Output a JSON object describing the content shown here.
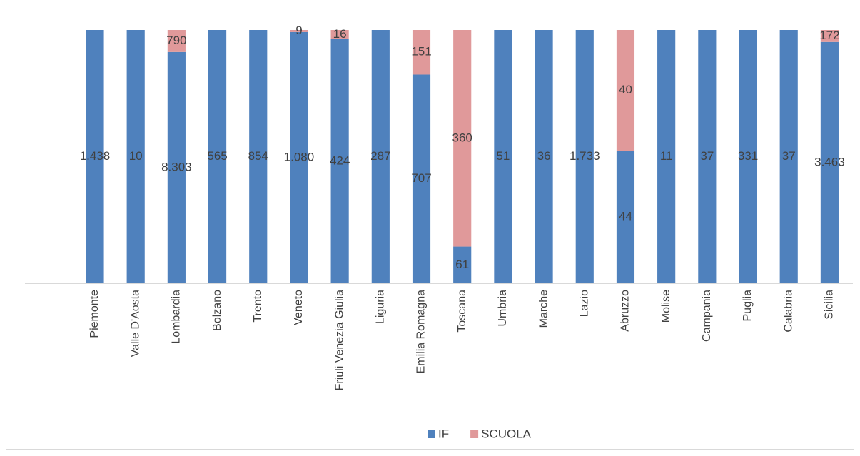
{
  "chart_data": {
    "type": "bar",
    "stacking": "percent",
    "categories": [
      "Piemonte",
      "Valle D'Aosta",
      "Lombardia",
      "Bolzano",
      "Trento",
      "Veneto",
      "Friuli Venezia Giulia",
      "Liguria",
      "Emilia Romagna",
      "Toscana",
      "Umbria",
      "Marche",
      "Lazio",
      "Abruzzo",
      "Molise",
      "Campania",
      "Puglia",
      "Calabria",
      "Sicilia"
    ],
    "series": [
      {
        "name": "IF",
        "color": "#4f81bd",
        "values": [
          1438,
          10,
          8303,
          565,
          854,
          1080,
          424,
          287,
          707,
          61,
          51,
          36,
          1733,
          44,
          11,
          37,
          331,
          37,
          3463
        ],
        "value_labels": [
          "1.438",
          "10",
          "8.303",
          "565",
          "854",
          "1.080",
          "424",
          "287",
          "707",
          "61",
          "51",
          "36",
          "1.733",
          "44",
          "11",
          "37",
          "331",
          "37",
          "3.463"
        ]
      },
      {
        "name": "SCUOLA",
        "color": "#e0999a",
        "values": [
          null,
          null,
          790,
          null,
          null,
          9,
          16,
          null,
          151,
          360,
          null,
          null,
          null,
          40,
          null,
          null,
          null,
          null,
          172
        ],
        "value_labels": [
          null,
          null,
          "790",
          null,
          null,
          "9",
          "16",
          null,
          "151",
          "360",
          null,
          null,
          null,
          "40",
          null,
          null,
          null,
          null,
          "172"
        ]
      }
    ],
    "legend": "bottom"
  }
}
